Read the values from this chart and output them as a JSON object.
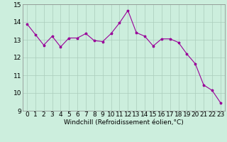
{
  "x": [
    0,
    1,
    2,
    3,
    4,
    5,
    6,
    7,
    8,
    9,
    10,
    11,
    12,
    13,
    14,
    15,
    16,
    17,
    18,
    19,
    20,
    21,
    22,
    23
  ],
  "y": [
    13.9,
    13.3,
    12.7,
    13.2,
    12.6,
    13.1,
    13.1,
    13.35,
    12.95,
    12.9,
    13.35,
    13.95,
    14.65,
    13.4,
    13.2,
    12.65,
    13.05,
    13.05,
    12.85,
    12.2,
    11.65,
    10.45,
    10.15,
    9.45
  ],
  "ylim": [
    9,
    15
  ],
  "xlim": [
    -0.5,
    23.5
  ],
  "yticks": [
    9,
    10,
    11,
    12,
    13,
    14,
    15
  ],
  "xticks": [
    0,
    1,
    2,
    3,
    4,
    5,
    6,
    7,
    8,
    9,
    10,
    11,
    12,
    13,
    14,
    15,
    16,
    17,
    18,
    19,
    20,
    21,
    22,
    23
  ],
  "xlabel": "Windchill (Refroidissement éolien,°C)",
  "line_color": "#990099",
  "marker": "*",
  "bg_color": "#cceedd",
  "grid_color": "#aaccbb",
  "tick_label_fontsize": 6.5,
  "xlabel_fontsize": 6.5
}
